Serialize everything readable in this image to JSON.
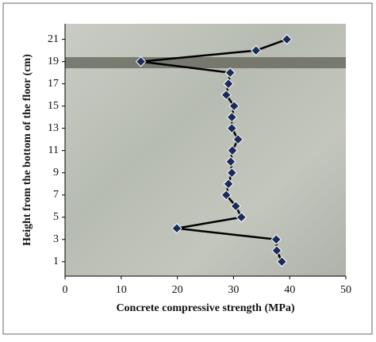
{
  "chart_data": {
    "type": "line",
    "x_label": "Concrete compressive strength (MPa)",
    "y_label": "Height from the bottom of the floor (cm)",
    "x": [
      38.6,
      37.7,
      37.6,
      19.9,
      31.4,
      30.4,
      28.7,
      29.1,
      29.7,
      29.5,
      29.8,
      30.8,
      29.7,
      29.7,
      30.1,
      28.7,
      29.1,
      29.4,
      13.5,
      34.0,
      39.5
    ],
    "values": [
      1,
      2,
      3,
      4,
      5,
      6,
      7,
      8,
      9,
      10,
      11,
      12,
      13,
      14,
      15,
      16,
      17,
      18,
      19,
      20,
      21
    ],
    "color": "#000000",
    "marker_color": "#1a2a5a",
    "xlim": [
      0,
      50
    ],
    "xticks": [
      0,
      10,
      20,
      30,
      40,
      50
    ],
    "ylim": [
      -0.3,
      22.4
    ],
    "yticks": [
      1,
      3,
      5,
      7,
      9,
      11,
      13,
      15,
      17,
      19,
      21
    ]
  }
}
